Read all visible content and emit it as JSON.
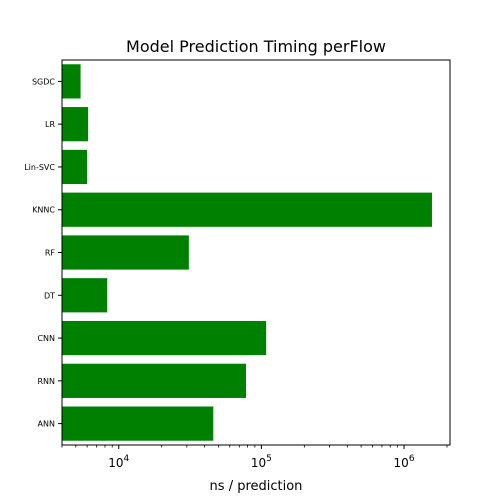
{
  "chart_data": {
    "type": "bar",
    "orientation": "horizontal",
    "title": "Model Prediction Timing perFlow",
    "xlabel": "ns / prediction",
    "ylabel": "",
    "xscale": "log",
    "xlim": [
      4000,
      2100000
    ],
    "bar_color": "#008000",
    "categories": [
      "SGDC",
      "LR",
      "Lin-SVC",
      "KNNC",
      "RF",
      "DT",
      "CNN",
      "RNN",
      "ANN"
    ],
    "values": [
      5400,
      6100,
      6000,
      1570000,
      31000,
      8300,
      108000,
      78000,
      46000
    ],
    "x_ticks": [
      {
        "value": 10000,
        "base": "10",
        "exp": "4"
      },
      {
        "value": 100000,
        "base": "10",
        "exp": "5"
      },
      {
        "value": 1000000,
        "base": "10",
        "exp": "6"
      }
    ]
  }
}
